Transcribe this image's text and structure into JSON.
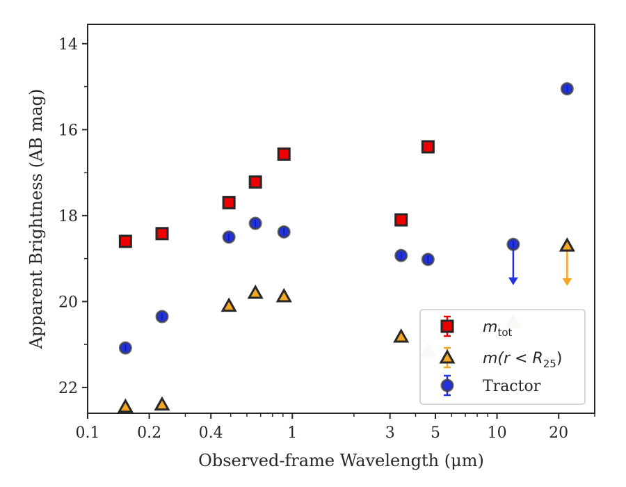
{
  "chart_data": {
    "type": "scatter",
    "title": "",
    "xlabel": "Observed-frame Wavelength (μm)",
    "ylabel": "Apparent Brightness (AB mag)",
    "xscale": "log",
    "xlim": [
      0.1,
      30
    ],
    "ylim": [
      22.6,
      13.55
    ],
    "y_inverted": true,
    "x_ticks": [
      {
        "value": 0.1,
        "label": "0.1"
      },
      {
        "value": 0.2,
        "label": "0.2"
      },
      {
        "value": 0.4,
        "label": "0.4"
      },
      {
        "value": 1,
        "label": "1"
      },
      {
        "value": 3,
        "label": "3"
      },
      {
        "value": 5,
        "label": "5"
      },
      {
        "value": 10,
        "label": "10"
      },
      {
        "value": 20,
        "label": "20"
      }
    ],
    "y_ticks": [
      {
        "value": 14,
        "label": "14"
      },
      {
        "value": 16,
        "label": "16"
      },
      {
        "value": 18,
        "label": "18"
      },
      {
        "value": 20,
        "label": "20"
      },
      {
        "value": 22,
        "label": "22"
      }
    ],
    "legend_position": "lower-right",
    "series": [
      {
        "name": "m_tot",
        "legend_main": "m",
        "legend_sub": "tot",
        "marker": "square",
        "color": "#ee0000",
        "edge_color": "#262626",
        "points": [
          {
            "x": 0.153,
            "y": 18.6
          },
          {
            "x": 0.231,
            "y": 18.42
          },
          {
            "x": 0.49,
            "y": 17.7
          },
          {
            "x": 0.66,
            "y": 17.22
          },
          {
            "x": 0.91,
            "y": 16.57
          },
          {
            "x": 3.4,
            "y": 18.1
          },
          {
            "x": 4.6,
            "y": 16.4
          }
        ]
      },
      {
        "name": "m(r < R25)",
        "legend_main": "m(r < R",
        "legend_sub": "25",
        "legend_close": ")",
        "marker": "triangle",
        "color": "#f5a623",
        "edge_color": "#262626",
        "points": [
          {
            "x": 0.153,
            "y": 22.45
          },
          {
            "x": 0.231,
            "y": 22.4
          },
          {
            "x": 0.49,
            "y": 20.1
          },
          {
            "x": 0.66,
            "y": 19.8
          },
          {
            "x": 0.91,
            "y": 19.88
          },
          {
            "x": 3.4,
            "y": 20.82
          },
          {
            "x": 22,
            "y": 18.7,
            "upper_limit": true,
            "arrow_to": 19.62
          }
        ]
      },
      {
        "name": "Tractor",
        "legend_main": "Tractor",
        "marker": "circle",
        "color": "#2233dd",
        "edge_color": "#3a3a3a",
        "points": [
          {
            "x": 0.153,
            "y": 21.08
          },
          {
            "x": 0.231,
            "y": 20.35
          },
          {
            "x": 0.49,
            "y": 18.5
          },
          {
            "x": 0.66,
            "y": 18.18
          },
          {
            "x": 0.91,
            "y": 18.38
          },
          {
            "x": 3.4,
            "y": 18.93
          },
          {
            "x": 4.6,
            "y": 19.02
          },
          {
            "x": 12,
            "y": 18.67,
            "upper_limit": true,
            "arrow_to": 19.6
          },
          {
            "x": 22,
            "y": 15.05
          }
        ]
      }
    ],
    "faded_points": [
      {
        "marker": "triangle",
        "x": 4.6,
        "y": 21.15
      },
      {
        "marker": "triangle",
        "x": 12,
        "y": 20.48
      }
    ]
  }
}
